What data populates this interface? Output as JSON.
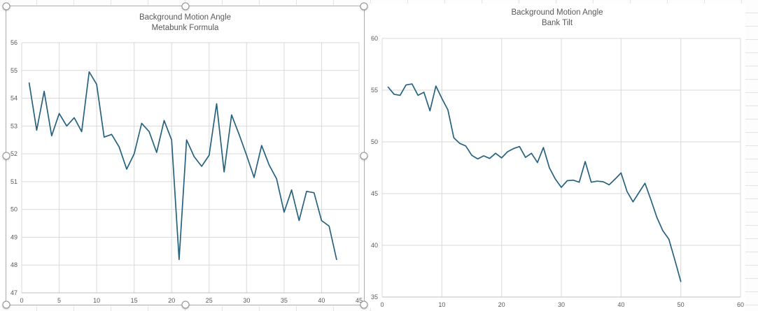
{
  "surface": {
    "type": "spreadsheet-sheet-with-embedded-charts"
  },
  "colors": {
    "series_line": "#26627F",
    "gridline": "#D9D9D9",
    "axis_line": "#BFBFBF",
    "tick_label": "#595959",
    "title_text": "#595959",
    "selection_border": "#ABABAB",
    "selection_handle_border": "#8F8F8F"
  },
  "chart_data": [
    {
      "type": "line",
      "title": "Background Motion Angle",
      "subtitle": "Metabunk Formula",
      "selected": true,
      "legend": "none",
      "grid": true,
      "xlabel": "",
      "ylabel": "",
      "xlim": [
        0,
        45
      ],
      "ylim": [
        47,
        56
      ],
      "x_ticks": [
        0,
        5,
        10,
        15,
        20,
        25,
        30,
        35,
        40,
        45
      ],
      "y_ticks": [
        47,
        48,
        49,
        50,
        51,
        52,
        53,
        54,
        55,
        56
      ],
      "x": [
        1,
        2,
        3,
        4,
        5,
        6,
        7,
        8,
        9,
        10,
        11,
        12,
        13,
        14,
        15,
        16,
        17,
        18,
        19,
        20,
        21,
        22,
        23,
        24,
        25,
        26,
        27,
        28,
        29,
        30,
        31,
        32,
        33,
        34,
        35,
        36,
        37,
        38,
        39,
        40,
        41,
        42
      ],
      "values": [
        54.55,
        52.85,
        54.25,
        52.65,
        53.45,
        53.0,
        53.3,
        52.8,
        54.95,
        54.5,
        52.6,
        52.7,
        52.25,
        51.45,
        52.0,
        53.1,
        52.8,
        52.05,
        53.2,
        52.5,
        48.2,
        52.5,
        51.9,
        51.55,
        51.95,
        53.8,
        51.35,
        53.4,
        52.7,
        51.95,
        51.15,
        52.3,
        51.6,
        51.1,
        49.9,
        50.7,
        49.6,
        50.65,
        50.6,
        49.6,
        49.4,
        48.2
      ]
    },
    {
      "type": "line",
      "title": "Background Motion Angle",
      "subtitle": "Bank Tilt",
      "selected": false,
      "legend": "none",
      "grid": true,
      "xlabel": "",
      "ylabel": "",
      "xlim": [
        0,
        60
      ],
      "ylim": [
        35,
        60
      ],
      "x_ticks": [
        0,
        10,
        20,
        30,
        40,
        50,
        60
      ],
      "y_ticks": [
        35,
        40,
        45,
        50,
        55,
        60
      ],
      "x": [
        1,
        2,
        3,
        4,
        5,
        6,
        7,
        8,
        9,
        10,
        11,
        12,
        13,
        14,
        15,
        16,
        17,
        18,
        19,
        20,
        21,
        22,
        23,
        24,
        25,
        26,
        27,
        28,
        29,
        30,
        31,
        32,
        33,
        34,
        35,
        36,
        37,
        38,
        39,
        40,
        41,
        42,
        43,
        44,
        45,
        46,
        47,
        48,
        49,
        50
      ],
      "values": [
        55.3,
        54.6,
        54.5,
        55.5,
        55.6,
        54.5,
        54.8,
        53.0,
        55.4,
        54.2,
        53.1,
        50.4,
        49.85,
        49.6,
        48.7,
        48.35,
        48.65,
        48.4,
        48.9,
        48.45,
        49.05,
        49.35,
        49.55,
        48.5,
        48.9,
        48.0,
        49.45,
        47.5,
        46.4,
        45.6,
        46.25,
        46.3,
        46.1,
        48.1,
        46.1,
        46.2,
        46.15,
        45.85,
        46.4,
        47.0,
        45.2,
        44.2,
        45.1,
        46.0,
        44.4,
        42.7,
        41.4,
        40.6,
        38.6,
        36.5
      ]
    }
  ]
}
